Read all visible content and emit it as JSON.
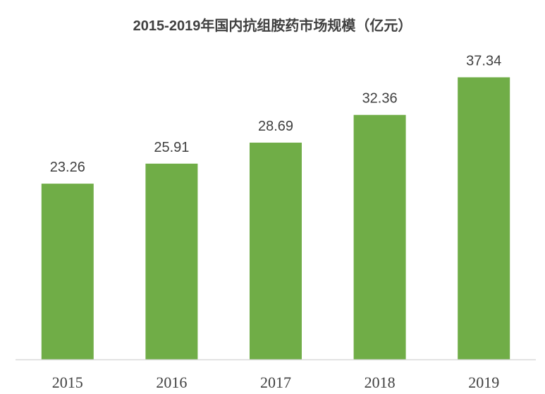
{
  "chart_data": {
    "type": "bar",
    "title": "2015-2019年国内抗组胺药市场规模（亿元）",
    "categories": [
      "2015",
      "2016",
      "2017",
      "2018",
      "2019"
    ],
    "values": [
      23.26,
      25.91,
      28.69,
      32.36,
      37.34
    ],
    "value_labels": [
      "23.26",
      "25.91",
      "28.69",
      "32.36",
      "37.34"
    ],
    "xlabel": "",
    "ylabel": "",
    "ylim": [
      0,
      40
    ],
    "grid": false,
    "legend": "none",
    "bar_color": "#70AD47",
    "axis_color": "#D9D9D9"
  }
}
